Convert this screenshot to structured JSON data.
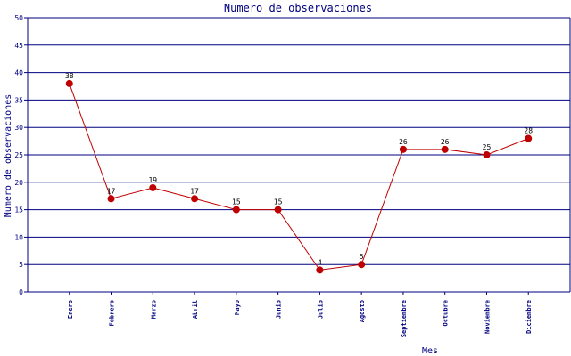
{
  "chart_data": {
    "type": "line",
    "title": "Numero de observaciones",
    "xlabel": "Mes",
    "ylabel": "Numero de observaciones",
    "ylim": [
      0,
      50
    ],
    "yticks": [
      0,
      5,
      10,
      15,
      20,
      25,
      30,
      35,
      40,
      45,
      50
    ],
    "grid": true,
    "categories": [
      "Enero",
      "Febrero",
      "Marzo",
      "Abril",
      "Mayo",
      "Junio",
      "Julio",
      "Agosto",
      "Septiembre",
      "Octubre",
      "Noviembre",
      "Diciembre"
    ],
    "series": [
      {
        "values": [
          38,
          17,
          19,
          17,
          15,
          15,
          4,
          5,
          26,
          26,
          25,
          28
        ]
      }
    ],
    "colors": {
      "line": "#c00000",
      "marker": "#c00000",
      "grid": "#000080",
      "axis": "#000080",
      "text": "#000080"
    }
  }
}
